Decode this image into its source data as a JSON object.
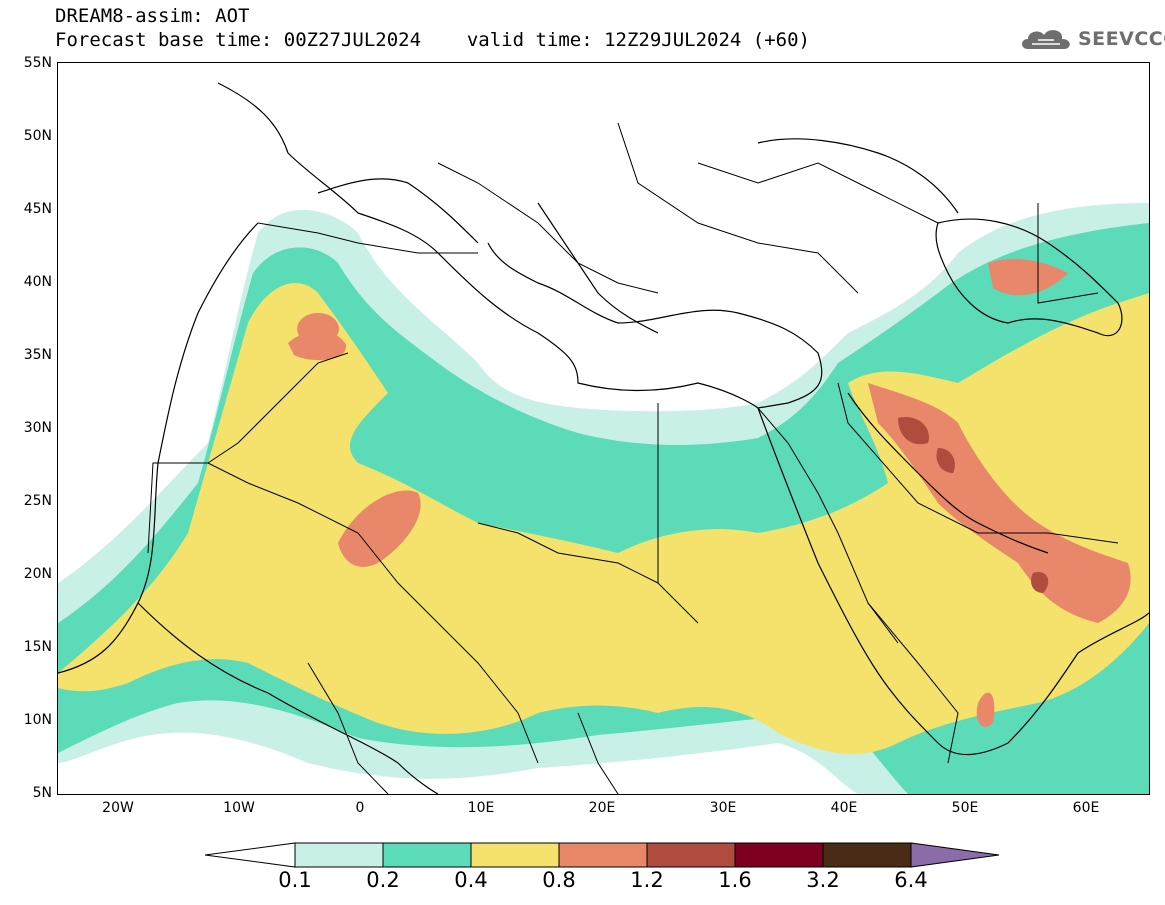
{
  "header": {
    "title": "DREAM8-assim: AOT",
    "base_time": "Forecast base time: 00Z27JUL2024",
    "valid_time": "valid time: 12Z29JUL2024 (+60)"
  },
  "logo": {
    "icon": "cloud-icon",
    "text": "SEEVCCC"
  },
  "map": {
    "lat_labels": [
      "55N",
      "50N",
      "45N",
      "40N",
      "35N",
      "30N",
      "25N",
      "20N",
      "15N",
      "10N",
      "5N"
    ],
    "lon_labels": [
      "20W",
      "10W",
      "0",
      "10E",
      "20E",
      "30E",
      "40E",
      "50E",
      "60E"
    ]
  },
  "colorbar": {
    "labels": [
      "0.1",
      "0.2",
      "0.4",
      "0.8",
      "1.2",
      "1.6",
      "3.2",
      "6.4"
    ],
    "colors": {
      "below": "#ffffff",
      "c1": "#c9f0e6",
      "c2": "#5cdbb8",
      "c3": "#f4e26c",
      "c4": "#e8876a",
      "c5": "#b04c3d",
      "c6": "#7e0021",
      "c7": "#4a2c16",
      "above": "#8c6ca8"
    }
  }
}
